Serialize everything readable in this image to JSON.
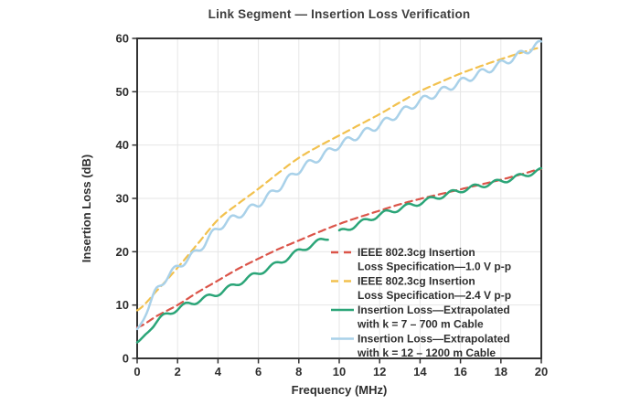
{
  "chart_data": {
    "type": "line",
    "title": "Link Segment — Insertion Loss Verification",
    "xlabel": "Frequency (MHz)",
    "ylabel": "Insertion Loss (dB)",
    "xlim": [
      0,
      20
    ],
    "ylim": [
      0,
      60
    ],
    "x_ticks": [
      0,
      2,
      4,
      6,
      8,
      10,
      12,
      14,
      16,
      18,
      20
    ],
    "y_ticks": [
      0,
      10,
      20,
      30,
      40,
      50,
      60
    ],
    "grid": true,
    "legend_position": "inside-lower-right",
    "colors": {
      "spec_1v0": "#db5449",
      "spec_2v4": "#f2c14e",
      "cable_700m": "#2ba578",
      "cable_1200m": "#a9d1e9",
      "gridline": "#e6e6e6",
      "frame": "#333333",
      "text": "#2e2e2e"
    },
    "x": [
      0,
      1,
      2,
      3,
      4,
      5,
      6,
      7,
      8,
      9,
      10,
      11,
      12,
      13,
      14,
      15,
      16,
      17,
      18,
      19,
      20
    ],
    "series": [
      {
        "id": "spec_1v0",
        "name": "IEEE 802.3cg Insertion Loss Specification—1.0 V p-p",
        "legend_lines": [
          "IEEE 802.3cg Insertion",
          "Loss Specification—1.0 V p-p"
        ],
        "color": "#db5449",
        "style": "dashed",
        "values": [
          5.8,
          8.0,
          10.0,
          12.4,
          14.6,
          16.8,
          18.7,
          20.5,
          22.1,
          23.7,
          25.2,
          26.5,
          27.7,
          28.9,
          29.9,
          30.8,
          31.7,
          32.6,
          33.5,
          34.5,
          35.5
        ]
      },
      {
        "id": "spec_2v4",
        "name": "IEEE 802.3cg Insertion Loss Specification—2.4 V p-p",
        "legend_lines": [
          "IEEE 802.3cg Insertion",
          "Loss Specification—2.4 V p-p"
        ],
        "color": "#f2c14e",
        "style": "dashed",
        "values": [
          9.0,
          12.8,
          17.0,
          21.5,
          26.0,
          29.0,
          31.8,
          34.8,
          37.6,
          39.8,
          41.8,
          43.8,
          45.8,
          48.0,
          50.1,
          51.8,
          53.4,
          54.8,
          56.1,
          57.3,
          58.3
        ]
      },
      {
        "id": "cable_700m",
        "name": "Insertion Loss—Extrapolated with k = 7 – 700 m Cable",
        "legend_lines": [
          "Insertion Loss—Extrapolated",
          "with k = 7 – 700 m Cable"
        ],
        "color": "#2ba578",
        "style": "solid",
        "ripple": {
          "amplitude": 0.45,
          "period_mhz": 1.1,
          "phase": 0.6
        },
        "gap": [
          9.45,
          9.95
        ],
        "values": [
          3.0,
          7.0,
          9.3,
          10.8,
          12.2,
          14.1,
          16.0,
          17.9,
          20.1,
          21.9,
          23.6,
          25.3,
          26.9,
          28.1,
          29.2,
          30.4,
          31.5,
          32.4,
          33.2,
          34.2,
          35.2
        ]
      },
      {
        "id": "cable_1200m",
        "name": "Insertion Loss—Extrapolated with k = 12 – 1200 m Cable",
        "legend_lines": [
          "Insertion Loss—Extrapolated",
          "with k = 12 – 1200 m Cable"
        ],
        "color": "#a9d1e9",
        "style": "solid",
        "ripple": {
          "amplitude": 0.65,
          "period_mhz": 0.95,
          "phase": 2.1
        },
        "values": [
          5.5,
          13.0,
          17.1,
          20.2,
          24.4,
          26.8,
          29.0,
          32.0,
          35.3,
          37.6,
          40.0,
          41.9,
          43.8,
          46.0,
          48.2,
          50.0,
          51.8,
          53.5,
          55.2,
          57.1,
          59.0
        ]
      }
    ]
  }
}
